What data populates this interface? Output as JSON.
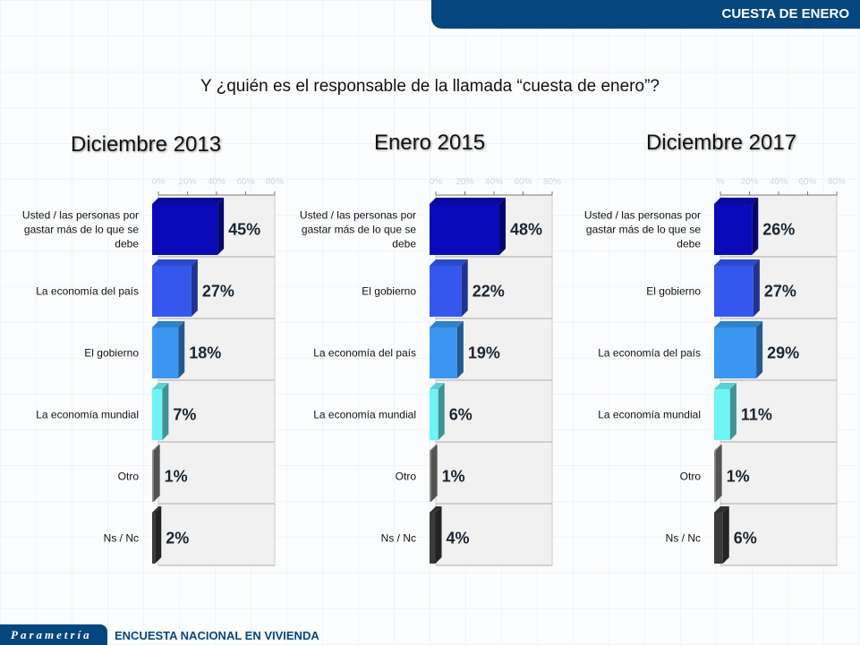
{
  "header": {
    "title": "CUESTA DE ENERO"
  },
  "question": "Y ¿quién es el responsable de la llamada “cuesta de enero”?",
  "footer": {
    "logo": "Parametría",
    "survey": "ENCUESTA NACIONAL EN VIVIENDA"
  },
  "colors": [
    "#0a0ab8",
    "#3557ee",
    "#3a96f0",
    "#6ef4f4",
    "#8a8a8a",
    "#3a3a3a"
  ],
  "chart_data": [
    {
      "type": "bar",
      "title": "Diciembre 2013",
      "xlim": [
        0,
        80
      ],
      "ticks": [
        "0%",
        "20%",
        "40%",
        "60%",
        "80%"
      ],
      "categories": [
        "Usted / las personas por gastar más de lo que se debe",
        "La economía del país",
        "El gobierno",
        "La economía mundial",
        "Otro",
        "Ns / Nc"
      ],
      "values": [
        45,
        27,
        18,
        7,
        1,
        2
      ],
      "labels": [
        "45%",
        "27%",
        "18%",
        "7%",
        "1%",
        "2%"
      ]
    },
    {
      "type": "bar",
      "title": "Enero 2015",
      "xlim": [
        0,
        80
      ],
      "ticks": [
        "0%",
        "20%",
        "40%",
        "60%",
        "80%"
      ],
      "categories": [
        "Usted / las personas por gastar más de lo que se debe",
        "El gobierno",
        "La economía del país",
        "La economía mundial",
        "Otro",
        "Ns / Nc"
      ],
      "values": [
        48,
        22,
        19,
        6,
        1,
        4
      ],
      "labels": [
        "48%",
        "22%",
        "19%",
        "6%",
        "1%",
        "4%"
      ]
    },
    {
      "type": "bar",
      "title": "Diciembre 2017",
      "xlim": [
        0,
        80
      ],
      "ticks": [
        "%",
        "20%",
        "40%",
        "60%",
        "80%"
      ],
      "categories": [
        "Usted / las personas por gastar más de lo que se debe",
        "El gobierno",
        "La economía del país",
        "La economía mundial",
        "Otro",
        "Ns / Nc"
      ],
      "values": [
        26,
        27,
        29,
        11,
        1,
        6
      ],
      "labels": [
        "26%",
        "27%",
        "29%",
        "11%",
        "1%",
        "6%"
      ]
    }
  ]
}
